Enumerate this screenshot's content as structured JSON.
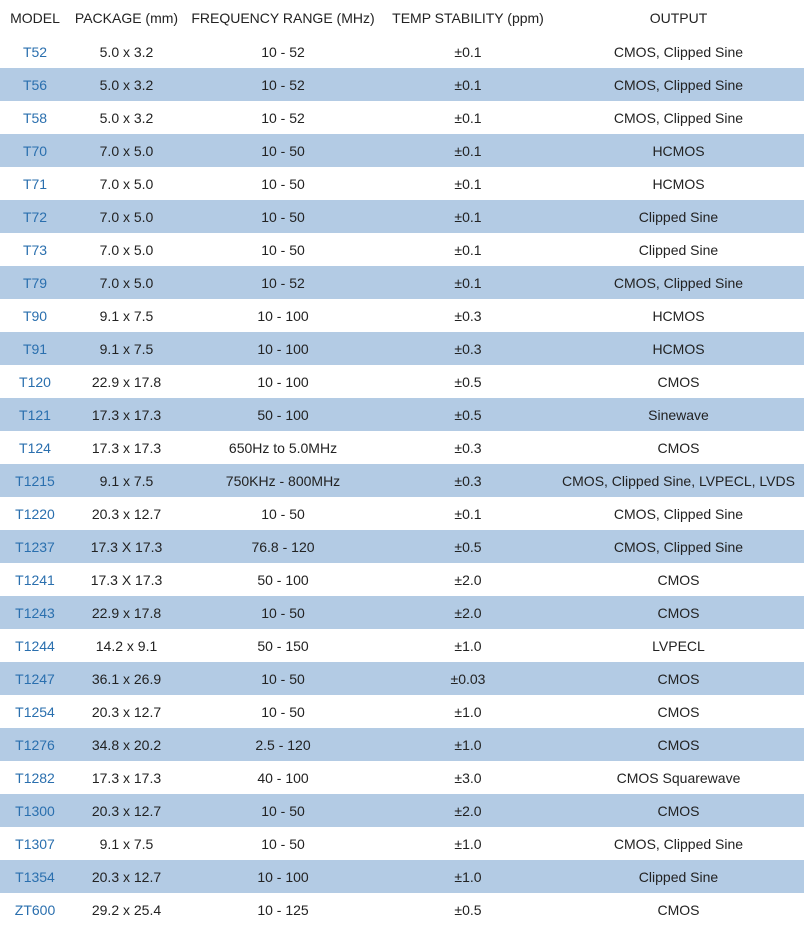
{
  "table": {
    "headers": [
      "MODEL",
      "PACKAGE (mm)",
      "FREQUENCY RANGE (MHz)",
      "TEMP STABILITY (ppm)",
      "OUTPUT"
    ],
    "rows": [
      {
        "model": "T52",
        "package": "5.0 x 3.2",
        "frequency": "10 - 52",
        "stability": "±0.1",
        "output": "CMOS, Clipped Sine"
      },
      {
        "model": "T56",
        "package": "5.0 x 3.2",
        "frequency": "10 - 52",
        "stability": "±0.1",
        "output": "CMOS, Clipped Sine"
      },
      {
        "model": "T58",
        "package": "5.0 x 3.2",
        "frequency": "10 - 52",
        "stability": "±0.1",
        "output": "CMOS, Clipped Sine"
      },
      {
        "model": "T70",
        "package": "7.0 x 5.0",
        "frequency": "10 - 50",
        "stability": "±0.1",
        "output": "HCMOS"
      },
      {
        "model": "T71",
        "package": "7.0 x 5.0",
        "frequency": "10 - 50",
        "stability": "±0.1",
        "output": "HCMOS"
      },
      {
        "model": "T72",
        "package": "7.0 x 5.0",
        "frequency": "10 - 50",
        "stability": "±0.1",
        "output": "Clipped Sine"
      },
      {
        "model": "T73",
        "package": "7.0 x 5.0",
        "frequency": "10 - 50",
        "stability": "±0.1",
        "output": "Clipped Sine"
      },
      {
        "model": "T79",
        "package": "7.0 x 5.0",
        "frequency": "10 - 52",
        "stability": "±0.1",
        "output": "CMOS, Clipped Sine"
      },
      {
        "model": "T90",
        "package": "9.1 x 7.5",
        "frequency": "10 - 100",
        "stability": "±0.3",
        "output": "HCMOS"
      },
      {
        "model": "T91",
        "package": "9.1 x 7.5",
        "frequency": "10 - 100",
        "stability": "±0.3",
        "output": "HCMOS"
      },
      {
        "model": "T120",
        "package": "22.9 x 17.8",
        "frequency": "10 - 100",
        "stability": "±0.5",
        "output": "CMOS"
      },
      {
        "model": "T121",
        "package": "17.3 x 17.3",
        "frequency": "50 - 100",
        "stability": "±0.5",
        "output": "Sinewave"
      },
      {
        "model": "T124",
        "package": "17.3 x 17.3",
        "frequency": "650Hz to 5.0MHz",
        "stability": "±0.3",
        "output": "CMOS"
      },
      {
        "model": "T1215",
        "package": "9.1 x 7.5",
        "frequency": "750KHz - 800MHz",
        "stability": "±0.3",
        "output": "CMOS, Clipped Sine, LVPECL, LVDS"
      },
      {
        "model": "T1220",
        "package": "20.3 x 12.7",
        "frequency": "10 - 50",
        "stability": "±0.1",
        "output": "CMOS, Clipped Sine"
      },
      {
        "model": "T1237",
        "package": "17.3 X 17.3",
        "frequency": "76.8 - 120",
        "stability": "±0.5",
        "output": "CMOS, Clipped Sine"
      },
      {
        "model": "T1241",
        "package": "17.3 X 17.3",
        "frequency": "50 - 100",
        "stability": "±2.0",
        "output": "CMOS"
      },
      {
        "model": "T1243",
        "package": "22.9 x 17.8",
        "frequency": "10 - 50",
        "stability": "±2.0",
        "output": "CMOS"
      },
      {
        "model": "T1244",
        "package": "14.2 x 9.1",
        "frequency": "50 - 150",
        "stability": "±1.0",
        "output": "LVPECL"
      },
      {
        "model": "T1247",
        "package": "36.1 x 26.9",
        "frequency": "10 - 50",
        "stability": "±0.03",
        "output": "CMOS"
      },
      {
        "model": "T1254",
        "package": "20.3 x 12.7",
        "frequency": "10 - 50",
        "stability": "±1.0",
        "output": "CMOS"
      },
      {
        "model": "T1276",
        "package": "34.8 x 20.2",
        "frequency": "2.5 - 120",
        "stability": "±1.0",
        "output": "CMOS"
      },
      {
        "model": "T1282",
        "package": "17.3 x 17.3",
        "frequency": "40 - 100",
        "stability": "±3.0",
        "output": "CMOS Squarewave"
      },
      {
        "model": "T1300",
        "package": "20.3 x 12.7",
        "frequency": "10 - 50",
        "stability": "±2.0",
        "output": "CMOS"
      },
      {
        "model": "T1307",
        "package": "9.1 x 7.5",
        "frequency": "10 - 50",
        "stability": "±1.0",
        "output": "CMOS, Clipped Sine"
      },
      {
        "model": "T1354",
        "package": "20.3 x 12.7",
        "frequency": "10 - 100",
        "stability": "±1.0",
        "output": "Clipped Sine"
      },
      {
        "model": "ZT600",
        "package": "29.2 x 25.4",
        "frequency": "10 - 125",
        "stability": "±0.5",
        "output": "CMOS"
      }
    ]
  },
  "colors": {
    "stripe": "#b3cbe4",
    "link": "#2a6fae",
    "text": "#222222",
    "background": "#ffffff"
  }
}
